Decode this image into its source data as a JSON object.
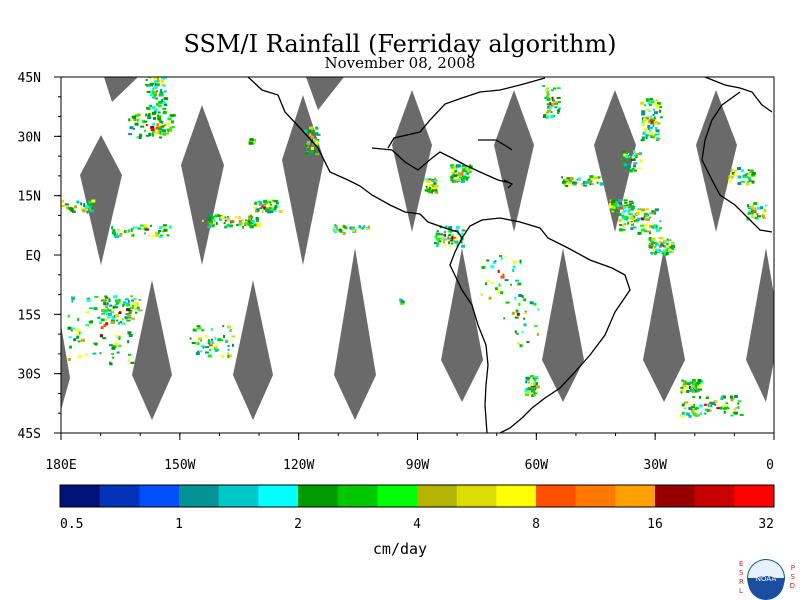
{
  "title": "SSM/I Rainfall (Ferriday algorithm)",
  "subtitle": "November 08, 2008",
  "map": {
    "lat_labels": [
      {
        "lat": 45,
        "label": "45N"
      },
      {
        "lat": 30,
        "label": "30N"
      },
      {
        "lat": 15,
        "label": "15N"
      },
      {
        "lat": 0,
        "label": "EQ"
      },
      {
        "lat": -15,
        "label": "15S"
      },
      {
        "lat": -30,
        "label": "30S"
      },
      {
        "lat": -45,
        "label": "45S"
      }
    ],
    "lon_labels": [
      {
        "lon": -180,
        "label": "180E"
      },
      {
        "lon": -150,
        "label": "150W"
      },
      {
        "lon": -120,
        "label": "120W"
      },
      {
        "lon": -90,
        "label": "90W"
      },
      {
        "lon": -60,
        "label": "60W"
      },
      {
        "lon": -30,
        "label": "30W"
      },
      {
        "lon": 0,
        "label": "0"
      }
    ],
    "lon_range": [
      -180,
      0
    ],
    "lat_range": [
      -45,
      45
    ],
    "colors": {
      "no_data_swath_gap": "#6a6a6a",
      "coastline": "#000000",
      "background": "#ffffff"
    }
  },
  "colorbar": {
    "title": "cm/day",
    "colors": [
      "#00127a",
      "#0033b8",
      "#0050ff",
      "#009494",
      "#00c8c8",
      "#00ffff",
      "#009a00",
      "#00c800",
      "#00ff00",
      "#b4b400",
      "#dcdc00",
      "#ffff00",
      "#ff5000",
      "#ff7800",
      "#ffa000",
      "#960000",
      "#c80000",
      "#ff0000"
    ],
    "tick_labels": [
      "0.5",
      "1",
      "2",
      "4",
      "8",
      "16",
      "32"
    ]
  },
  "logo": {
    "left_letters": "ESRL",
    "right_letters": "PSD",
    "center_text": "NOAA"
  }
}
